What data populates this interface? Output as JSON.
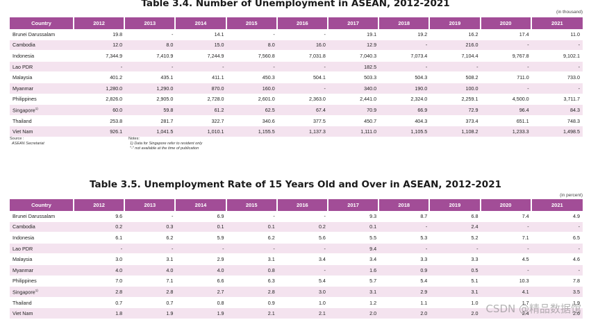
{
  "table1": {
    "title": "Table 3.4. Number of Unemployment in ASEAN, 2012-2021",
    "unit": "(in thousand)",
    "headers": [
      "Country",
      "2012",
      "2013",
      "2014",
      "2015",
      "2016",
      "2017",
      "2018",
      "2019",
      "2020",
      "2021"
    ],
    "rows": [
      {
        "country": "Brunei Darussalam",
        "sup": "",
        "values": [
          "19.8",
          "-",
          "14.1",
          "-",
          "-",
          "19.1",
          "19.2",
          "16.2",
          "17.4",
          "11.0"
        ]
      },
      {
        "country": "Cambodia",
        "sup": "",
        "values": [
          "12.0",
          "8.0",
          "15.0",
          "8.0",
          "16.0",
          "12.9",
          "-",
          "216.0",
          "-",
          "-"
        ]
      },
      {
        "country": "Indonesia",
        "sup": "",
        "values": [
          "7,344.9",
          "7,410.9",
          "7,244.9",
          "7,560.8",
          "7,031.8",
          "7,040.3",
          "7,073.4",
          "7,104.4",
          "9,767.8",
          "9,102.1"
        ]
      },
      {
        "country": "Lao PDR",
        "sup": "",
        "values": [
          "-",
          "-",
          "-",
          "-",
          "-",
          "182.5",
          "-",
          "-",
          "-",
          "-"
        ]
      },
      {
        "country": "Malaysia",
        "sup": "",
        "values": [
          "401.2",
          "435.1",
          "411.1",
          "450.3",
          "504.1",
          "503.3",
          "504.3",
          "508.2",
          "711.0",
          "733.0"
        ]
      },
      {
        "country": "Myanmar",
        "sup": "",
        "values": [
          "1,280.0",
          "1,290.0",
          "870.0",
          "160.0",
          "-",
          "340.0",
          "190.0",
          "100.0",
          "-",
          "-"
        ]
      },
      {
        "country": "Philippines",
        "sup": "",
        "values": [
          "2,826.0",
          "2,905.0",
          "2,728.0",
          "2,601.0",
          "2,363.0",
          "2,441.0",
          "2,324.0",
          "2,259.1",
          "4,500.0",
          "3,711.7"
        ]
      },
      {
        "country": "Singapore",
        "sup": "1)",
        "values": [
          "60.0",
          "59.8",
          "61.2",
          "62.5",
          "67.4",
          "70.9",
          "66.9",
          "72.9",
          "96.4",
          "84.3"
        ]
      },
      {
        "country": "Thailand",
        "sup": "",
        "values": [
          "253.8",
          "281.7",
          "322.7",
          "340.6",
          "377.5",
          "450.7",
          "404.3",
          "373.4",
          "651.1",
          "748.3"
        ]
      },
      {
        "country": "Viet Nam",
        "sup": "",
        "values": [
          "926.1",
          "1,041.5",
          "1,010.1",
          "1,155.5",
          "1,137.3",
          "1,111.0",
          "1,105.5",
          "1,108.2",
          "1,233.3",
          "1,498.5"
        ]
      }
    ],
    "source_label": "Source :",
    "source_text": "ASEAN Secretariat",
    "notes_label": "Notes:",
    "notes": [
      "1)  Data for Singapore refer to resident only",
      "\"-\"  not available at the time of publication"
    ]
  },
  "table2": {
    "title": "Table 3.5. Unemployment Rate of 15 Years Old and Over in ASEAN, 2012-2021",
    "unit": "(in percent)",
    "headers": [
      "Country",
      "2012",
      "2013",
      "2014",
      "2015",
      "2016",
      "2017",
      "2018",
      "2019",
      "2020",
      "2021"
    ],
    "rows": [
      {
        "country": "Brunei Darussalam",
        "sup": "",
        "values": [
          "9.6",
          "-",
          "6.9",
          "-",
          "-",
          "9.3",
          "8.7",
          "6.8",
          "7.4",
          "4.9"
        ]
      },
      {
        "country": "Cambodia",
        "sup": "",
        "values": [
          "0.2",
          "0.3",
          "0.1",
          "0.1",
          "0.2",
          "0.1",
          "-",
          "2.4",
          "-",
          "-"
        ]
      },
      {
        "country": "Indonesia",
        "sup": "",
        "values": [
          "6.1",
          "6.2",
          "5.9",
          "6.2",
          "5.6",
          "5.5",
          "5.3",
          "5.2",
          "7.1",
          "6.5"
        ]
      },
      {
        "country": "Lao PDR",
        "sup": "",
        "values": [
          "-",
          "-",
          "-",
          "-",
          "-",
          "9.4",
          "-",
          "-",
          "-",
          "-"
        ]
      },
      {
        "country": "Malaysia",
        "sup": "",
        "values": [
          "3.0",
          "3.1",
          "2.9",
          "3.1",
          "3.4",
          "3.4",
          "3.3",
          "3.3",
          "4.5",
          "4.6"
        ]
      },
      {
        "country": "Myanmar",
        "sup": "",
        "values": [
          "4.0",
          "4.0",
          "4.0",
          "0.8",
          "-",
          "1.6",
          "0.9",
          "0.5",
          "-",
          "-"
        ]
      },
      {
        "country": "Philippines",
        "sup": "",
        "values": [
          "7.0",
          "7.1",
          "6.6",
          "6.3",
          "5.4",
          "5.7",
          "5.4",
          "5.1",
          "10.3",
          "7.8"
        ]
      },
      {
        "country": "Singapore",
        "sup": "1)",
        "values": [
          "2.8",
          "2.8",
          "2.7",
          "2.8",
          "3.0",
          "3.1",
          "2.9",
          "3.1",
          "4.1",
          "3.5"
        ]
      },
      {
        "country": "Thailand",
        "sup": "",
        "values": [
          "0.7",
          "0.7",
          "0.8",
          "0.9",
          "1.0",
          "1.2",
          "1.1",
          "1.0",
          "1.7",
          "1.9"
        ]
      },
      {
        "country": "Viet Nam",
        "sup": "",
        "values": [
          "1.8",
          "1.9",
          "1.9",
          "2.1",
          "2.1",
          "2.0",
          "2.0",
          "2.0",
          "2.4",
          "2.6"
        ]
      }
    ]
  },
  "watermark": "CSDN @精品数据馆",
  "colors": {
    "header_bg": "#a24d97",
    "alt_row": "#f4e3ef"
  }
}
